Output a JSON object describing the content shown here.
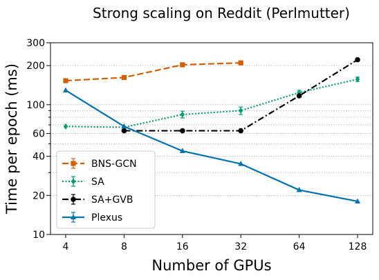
{
  "chart_data": {
    "type": "line",
    "title": "Strong scaling on Reddit (Perlmutter)",
    "xlabel": "Number of GPUs",
    "ylabel": "Time per epoch (ms)",
    "x_scale": "log2",
    "y_scale": "log",
    "x": [
      4,
      8,
      16,
      32,
      64,
      128
    ],
    "x_tick_labels": [
      "4",
      "8",
      "16",
      "32",
      "64",
      "128"
    ],
    "ylim": [
      10,
      300
    ],
    "y_ticks": [
      10,
      20,
      40,
      60,
      100,
      200,
      300
    ],
    "y_tick_labels": [
      "10",
      "20",
      "40",
      "60",
      "100",
      "200",
      "300"
    ],
    "y_gridlines": [
      10,
      20,
      30,
      40,
      50,
      60,
      70,
      80,
      90,
      100,
      200,
      300
    ],
    "grid": "horizontal dotted",
    "legend_position": "lower-left",
    "series": [
      {
        "name": "BNS-GCN",
        "color": "#d55e00",
        "linestyle": "dashed",
        "marker": "square",
        "x": [
          4,
          8,
          16,
          32
        ],
        "values": [
          153,
          162,
          203,
          210
        ],
        "errors": [
          0,
          0,
          0,
          0
        ]
      },
      {
        "name": "SA",
        "color": "#009e73",
        "linestyle": "dotted",
        "marker": "diamond",
        "x": [
          4,
          8,
          16,
          32,
          64,
          128
        ],
        "values": [
          68,
          67,
          84,
          90,
          124,
          157
        ],
        "errors": [
          0,
          0,
          5,
          6,
          5,
          6
        ]
      },
      {
        "name": "SA+GVB",
        "color": "#000000",
        "linestyle": "dashdot",
        "marker": "circle",
        "x": [
          8,
          16,
          32,
          64,
          128
        ],
        "values": [
          63,
          63,
          63,
          117,
          222
        ],
        "errors": [
          0,
          0,
          0,
          0,
          0
        ]
      },
      {
        "name": "Plexus",
        "color": "#0072b2",
        "linestyle": "solid",
        "marker": "triangle",
        "x": [
          4,
          8,
          16,
          32,
          64,
          128
        ],
        "values": [
          129,
          68,
          44,
          35,
          22,
          18
        ],
        "errors": [
          0,
          0,
          0,
          0,
          0,
          0
        ]
      }
    ]
  }
}
